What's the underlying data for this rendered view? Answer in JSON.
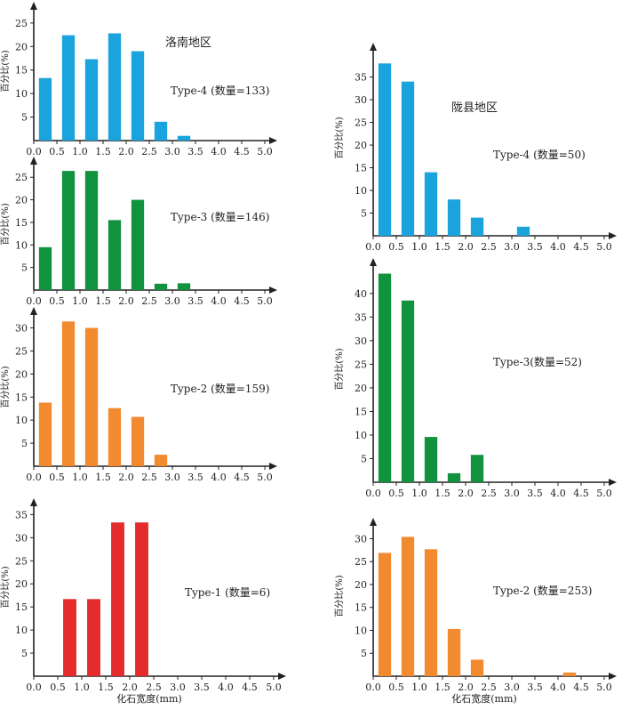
{
  "shared": {
    "ylabel": "百分比(%)",
    "xlabel": "化石宽度(mm)",
    "x_ticks": [
      "0.0",
      "0.5",
      "1.0",
      "1.5",
      "2.0",
      "2.5",
      "3.0",
      "3.5",
      "4.0",
      "4.5",
      "5.0"
    ],
    "colors": {
      "Type-4": "#1aa3dd",
      "Type-3": "#11923f",
      "Type-2": "#f28a30",
      "Type-1": "#e32b2b"
    }
  },
  "regions": {
    "luonan": {
      "label": "洛南地区"
    },
    "longxian": {
      "label": "陇县地区"
    }
  },
  "chart_data": [
    {
      "id": "luonan-type4",
      "type": "bar",
      "region": "洛南地区",
      "annotation": "Type-4 (数量=133)",
      "x": [
        0.25,
        0.75,
        1.25,
        1.75,
        2.25,
        2.75,
        3.25
      ],
      "values": [
        13.3,
        22.4,
        17.3,
        22.8,
        19.0,
        4.0,
        1.0
      ],
      "ylim": [
        0,
        28
      ],
      "y_ticks": [
        5,
        10,
        15,
        20,
        25
      ],
      "xlim": [
        0,
        5.0
      ],
      "color": "#1aa3dd"
    },
    {
      "id": "luonan-type3",
      "type": "bar",
      "region": "洛南地区",
      "annotation": "Type-3 (数量=146)",
      "x": [
        0.25,
        0.75,
        1.25,
        1.75,
        2.25,
        2.75,
        3.25
      ],
      "values": [
        9.5,
        26.4,
        26.4,
        15.5,
        20.0,
        1.4,
        1.5
      ],
      "ylim": [
        0,
        28
      ],
      "y_ticks": [
        5,
        10,
        15,
        20,
        25
      ],
      "xlim": [
        0,
        5.0
      ],
      "color": "#11923f"
    },
    {
      "id": "luonan-type2",
      "type": "bar",
      "region": "洛南地区",
      "annotation": "Type-2 (数量=159)",
      "x": [
        0.25,
        0.75,
        1.25,
        1.75,
        2.25,
        2.75
      ],
      "values": [
        13.8,
        31.4,
        30.0,
        12.6,
        10.7,
        2.5
      ],
      "ylim": [
        0,
        33
      ],
      "y_ticks": [
        5,
        10,
        15,
        20,
        25,
        30
      ],
      "xlim": [
        0,
        5.0
      ],
      "color": "#f28a30"
    },
    {
      "id": "luonan-type1",
      "type": "bar",
      "region": "洛南地区",
      "annotation": "Type-1 (数量=6)",
      "x": [
        0.75,
        1.25,
        1.75,
        2.25
      ],
      "values": [
        16.7,
        16.7,
        33.3,
        33.3
      ],
      "ylim": [
        0,
        37
      ],
      "y_ticks": [
        5,
        10,
        15,
        20,
        25,
        30,
        35
      ],
      "xlim": [
        0,
        5.0
      ],
      "color": "#e32b2b",
      "xlabel": "化石宽度(mm)"
    },
    {
      "id": "longxian-type4",
      "type": "bar",
      "region": "陇县地区",
      "annotation": "Type-4 (数量=50)",
      "x": [
        0.25,
        0.75,
        1.25,
        1.75,
        2.25,
        3.25
      ],
      "values": [
        38.0,
        34.0,
        14.0,
        8.0,
        4.0,
        2.0
      ],
      "ylim": [
        0,
        41
      ],
      "y_ticks": [
        5,
        10,
        15,
        20,
        25,
        30,
        35
      ],
      "xlim": [
        0,
        5.0
      ],
      "color": "#1aa3dd"
    },
    {
      "id": "longxian-type3",
      "type": "bar",
      "region": "陇县地区",
      "annotation": "Type-3(数量=52)",
      "x": [
        0.25,
        0.75,
        1.25,
        1.75,
        2.25
      ],
      "values": [
        44.2,
        38.5,
        9.6,
        1.9,
        5.8
      ],
      "ylim": [
        0,
        46
      ],
      "y_ticks": [
        5,
        10,
        15,
        20,
        25,
        30,
        35,
        40
      ],
      "xlim": [
        0,
        5.0
      ],
      "color": "#11923f"
    },
    {
      "id": "longxian-type2",
      "type": "bar",
      "region": "陇县地区",
      "annotation": "Type-2 (数量=253)",
      "x": [
        0.25,
        0.75,
        1.25,
        1.75,
        2.25,
        4.25
      ],
      "values": [
        26.9,
        30.4,
        27.7,
        10.3,
        3.6,
        0.8
      ],
      "ylim": [
        0,
        33
      ],
      "y_ticks": [
        5,
        10,
        15,
        20,
        25,
        30
      ],
      "xlim": [
        0,
        5.0
      ],
      "color": "#f28a30",
      "xlabel": "化石宽度(mm)"
    }
  ]
}
